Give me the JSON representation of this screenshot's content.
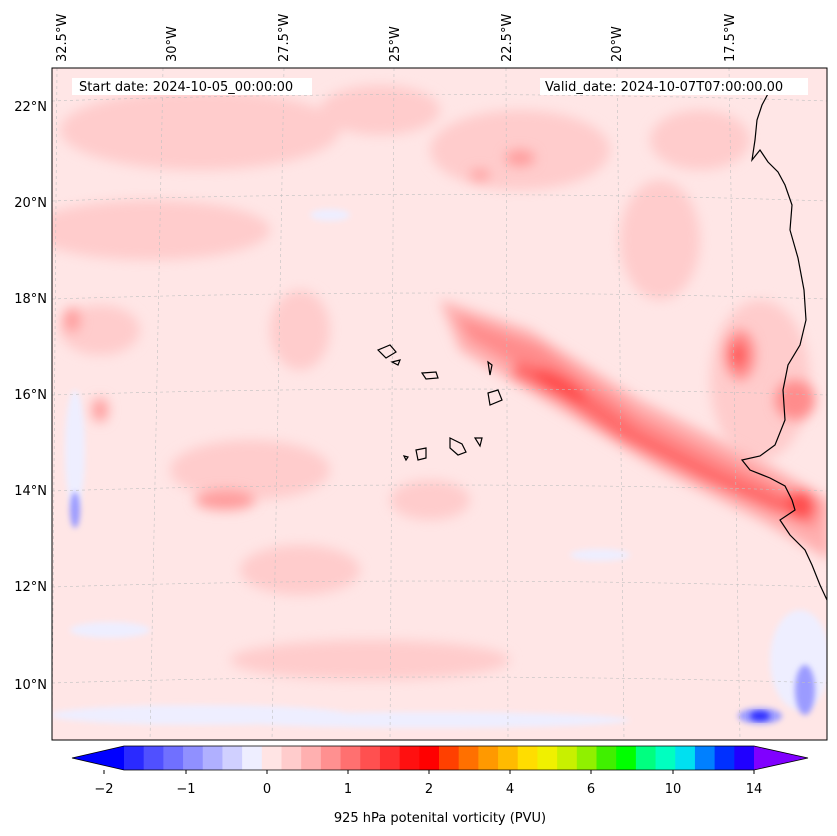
{
  "header": {
    "start_date": "Start date: 2024-10-05_00:00:00",
    "valid_date": "Valid_date: 2024-10-07T07:00:00.00"
  },
  "longitude_labels": [
    "32.5°W",
    "30°W",
    "27.5°W",
    "25°W",
    "22.5°W",
    "20°W",
    "17.5°W"
  ],
  "latitude_labels": [
    "22°N",
    "20°N",
    "18°N",
    "16°N",
    "14°N",
    "12°N",
    "10°N"
  ],
  "colorbar": {
    "label": "925 hPa potenital vorticity (PVU)",
    "tick_labels": [
      "−2",
      "−1",
      "0",
      "1",
      "2",
      "4",
      "6",
      "10",
      "14"
    ],
    "colors": [
      "#0000ff",
      "#2a2aff",
      "#5050ff",
      "#7070ff",
      "#9090ff",
      "#b0b0ff",
      "#d0d0ff",
      "#eeeeff",
      "#ffe4e4",
      "#ffcccc",
      "#ffb0b0",
      "#ff9090",
      "#ff7070",
      "#ff5050",
      "#ff3030",
      "#ff1010",
      "#ff0000",
      "#ff4000",
      "#ff7000",
      "#ff9900",
      "#ffbb00",
      "#ffdd00",
      "#f0f000",
      "#c8f000",
      "#90f000",
      "#40f000",
      "#00ff00",
      "#00ff80",
      "#00ffc0",
      "#00e0f0",
      "#0080ff",
      "#0030ff",
      "#2000ff",
      "#8000ff"
    ]
  }
}
